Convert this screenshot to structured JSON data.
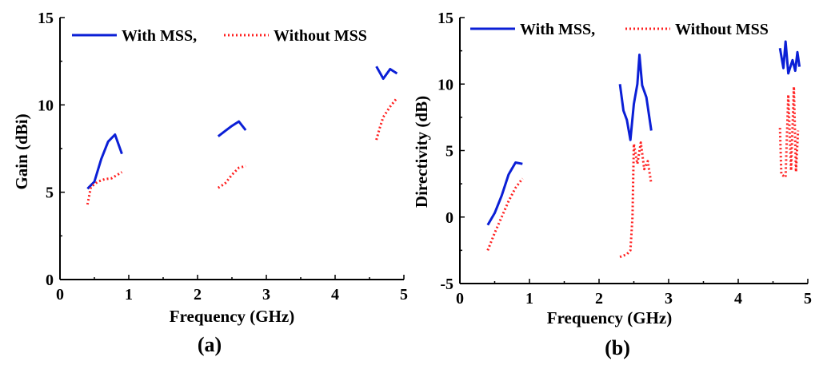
{
  "colors": {
    "with_mss": "#0b1fd6",
    "without_mss": "#ff2020"
  },
  "chart_data": [
    {
      "type": "line",
      "panel": "(a)",
      "xlabel": "Frequency (GHz)",
      "ylabel": "Gain (dBi)",
      "xlim": [
        0,
        5
      ],
      "ylim": [
        0,
        15
      ],
      "xticks": [
        "0",
        "1",
        "2",
        "3",
        "4",
        "5"
      ],
      "yticks": [
        "0",
        "5",
        "10",
        "15"
      ],
      "legend": {
        "with_label": "With MSS,",
        "without_label": "Without MSS"
      },
      "series": [
        {
          "name": "With MSS",
          "style": "solid",
          "segments": [
            [
              [
                0.4,
                5.2
              ],
              [
                0.5,
                5.6
              ],
              [
                0.6,
                6.9
              ],
              [
                0.7,
                7.9
              ],
              [
                0.8,
                8.3
              ],
              [
                0.9,
                7.2
              ]
            ],
            [
              [
                2.3,
                8.2
              ],
              [
                2.4,
                8.5
              ],
              [
                2.5,
                8.8
              ],
              [
                2.6,
                9.05
              ],
              [
                2.7,
                8.55
              ]
            ],
            [
              [
                4.6,
                12.2
              ],
              [
                4.7,
                11.5
              ],
              [
                4.8,
                12.05
              ],
              [
                4.9,
                11.8
              ]
            ]
          ]
        },
        {
          "name": "Without MSS",
          "style": "dotted",
          "segments": [
            [
              [
                0.4,
                4.3
              ],
              [
                0.45,
                5.3
              ],
              [
                0.55,
                5.6
              ],
              [
                0.65,
                5.75
              ],
              [
                0.75,
                5.8
              ],
              [
                0.9,
                6.15
              ]
            ],
            [
              [
                2.3,
                5.25
              ],
              [
                2.4,
                5.5
              ],
              [
                2.5,
                6.0
              ],
              [
                2.6,
                6.4
              ],
              [
                2.7,
                6.5
              ]
            ],
            [
              [
                4.6,
                8.0
              ],
              [
                4.65,
                8.7
              ],
              [
                4.7,
                9.3
              ],
              [
                4.8,
                9.9
              ],
              [
                4.9,
                10.4
              ]
            ]
          ]
        }
      ]
    },
    {
      "type": "line",
      "panel": "(b)",
      "xlabel": "Frequency (GHz)",
      "ylabel": "Directivity (dB)",
      "xlim": [
        0,
        5
      ],
      "ylim": [
        -5,
        15
      ],
      "xticks": [
        "0",
        "1",
        "2",
        "3",
        "4",
        "5"
      ],
      "yticks": [
        "-5",
        "0",
        "5",
        "10",
        "15"
      ],
      "legend": {
        "with_label": "With MSS,",
        "without_label": "Without MSS"
      },
      "series": [
        {
          "name": "With MSS",
          "style": "solid",
          "segments": [
            [
              [
                0.4,
                -0.6
              ],
              [
                0.5,
                0.3
              ],
              [
                0.6,
                1.6
              ],
              [
                0.7,
                3.2
              ],
              [
                0.8,
                4.1
              ],
              [
                0.9,
                4.0
              ]
            ],
            [
              [
                2.3,
                10.0
              ],
              [
                2.35,
                8.0
              ],
              [
                2.4,
                7.3
              ],
              [
                2.45,
                5.8
              ],
              [
                2.5,
                8.5
              ],
              [
                2.55,
                10.0
              ],
              [
                2.58,
                12.2
              ],
              [
                2.62,
                9.9
              ],
              [
                2.68,
                9.0
              ],
              [
                2.75,
                6.5
              ]
            ],
            [
              [
                4.6,
                12.7
              ],
              [
                4.65,
                11.2
              ],
              [
                4.68,
                13.2
              ],
              [
                4.72,
                10.8
              ],
              [
                4.78,
                11.8
              ],
              [
                4.82,
                11.0
              ],
              [
                4.85,
                12.4
              ],
              [
                4.88,
                11.3
              ]
            ]
          ]
        },
        {
          "name": "Without MSS",
          "style": "dotted",
          "segments": [
            [
              [
                0.4,
                -2.5
              ],
              [
                0.5,
                -1.2
              ],
              [
                0.6,
                0.0
              ],
              [
                0.7,
                1.2
              ],
              [
                0.8,
                2.2
              ],
              [
                0.9,
                2.9
              ]
            ],
            [
              [
                2.3,
                -3.0
              ],
              [
                2.4,
                -2.8
              ],
              [
                2.45,
                -2.5
              ],
              [
                2.48,
                0.0
              ],
              [
                2.5,
                5.5
              ],
              [
                2.55,
                4.0
              ],
              [
                2.6,
                5.6
              ],
              [
                2.65,
                3.6
              ],
              [
                2.7,
                4.2
              ],
              [
                2.75,
                2.5
              ]
            ],
            [
              [
                4.6,
                6.7
              ],
              [
                4.62,
                3.2
              ],
              [
                4.68,
                3.0
              ],
              [
                4.72,
                9.2
              ],
              [
                4.76,
                3.5
              ],
              [
                4.8,
                9.8
              ],
              [
                4.83,
                3.4
              ],
              [
                4.86,
                6.5
              ]
            ]
          ]
        }
      ]
    }
  ],
  "captions": {
    "a": "(a)",
    "b": "(b)"
  }
}
